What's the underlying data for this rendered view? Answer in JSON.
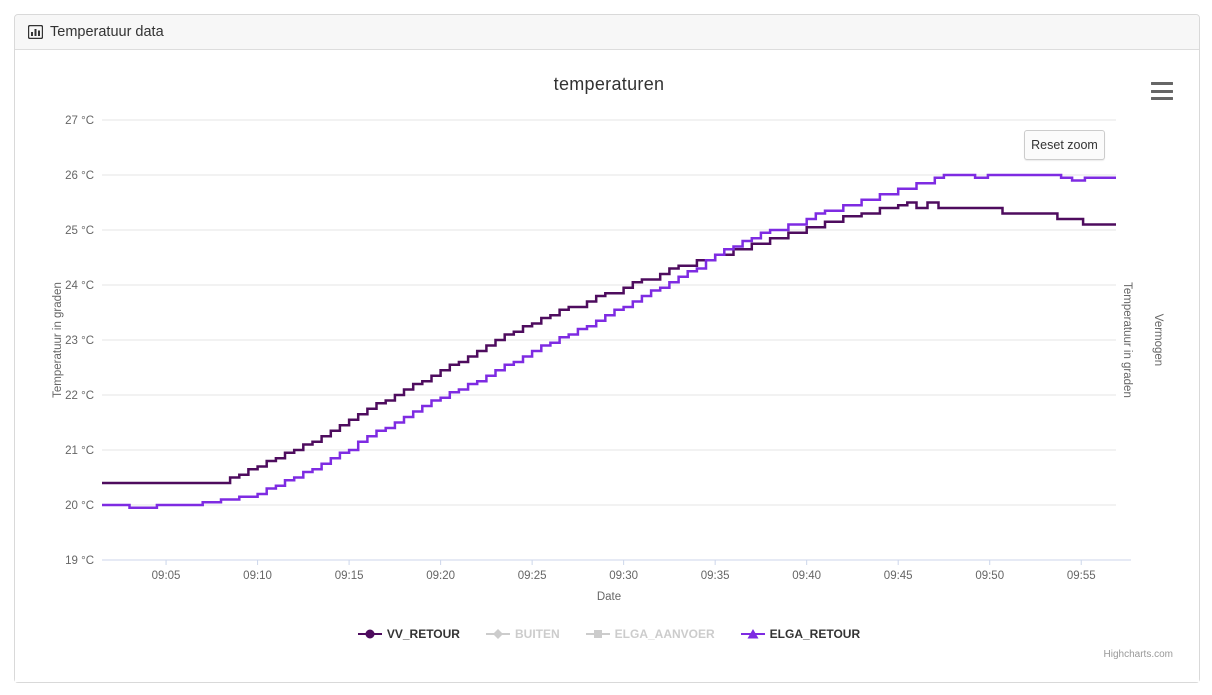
{
  "card": {
    "header_title": "Temperatuur data",
    "header_icon": "bar-chart-icon"
  },
  "toolbar": {
    "reset_zoom_label": "Reset zoom",
    "menu_icon": "hamburger-menu-icon"
  },
  "credits": {
    "label": "Highcharts.com"
  },
  "chart_data": {
    "type": "line",
    "title": "temperaturen",
    "xlabel": "Date",
    "ylabel_left": "Temperatuur in graden",
    "ylabel_right": "Temperatuur in graden",
    "ylabel_right2": "Vermogen",
    "x_unit": "minutes after 09:00",
    "xlim": [
      1.5,
      56.9
    ],
    "ylim": [
      19,
      27
    ],
    "grid": "horizontal-only",
    "legend_position": "bottom",
    "zoomed": true,
    "colors": {
      "grid": "#e6e6e6",
      "axis_line": "#ccd6eb",
      "tick_label": "#666666"
    },
    "y_ticks": [
      {
        "v": 19,
        "label": "19 °C"
      },
      {
        "v": 20,
        "label": "20 °C"
      },
      {
        "v": 21,
        "label": "21 °C"
      },
      {
        "v": 22,
        "label": "22 °C"
      },
      {
        "v": 23,
        "label": "23 °C"
      },
      {
        "v": 24,
        "label": "24 °C"
      },
      {
        "v": 25,
        "label": "25 °C"
      },
      {
        "v": 26,
        "label": "26 °C"
      },
      {
        "v": 27,
        "label": "27 °C"
      }
    ],
    "x_ticks": [
      {
        "v": 5,
        "label": "09:05"
      },
      {
        "v": 10,
        "label": "09:10"
      },
      {
        "v": 15,
        "label": "09:15"
      },
      {
        "v": 20,
        "label": "09:20"
      },
      {
        "v": 25,
        "label": "09:25"
      },
      {
        "v": 30,
        "label": "09:30"
      },
      {
        "v": 35,
        "label": "09:35"
      },
      {
        "v": 40,
        "label": "09:40"
      },
      {
        "v": 45,
        "label": "09:45"
      },
      {
        "v": 50,
        "label": "09:50"
      },
      {
        "v": 55,
        "label": "09:55"
      }
    ],
    "series": [
      {
        "name": "VV_RETOUR",
        "color": "#4e0c5e",
        "marker": "circle",
        "enabled": true,
        "step": true,
        "points": [
          [
            1.5,
            20.4
          ],
          [
            8,
            20.4
          ],
          [
            8.5,
            20.5
          ],
          [
            9,
            20.55
          ],
          [
            10,
            20.7
          ],
          [
            11,
            20.85
          ],
          [
            12,
            21.0
          ],
          [
            13,
            21.15
          ],
          [
            14,
            21.35
          ],
          [
            15,
            21.55
          ],
          [
            16,
            21.75
          ],
          [
            17,
            21.9
          ],
          [
            18,
            22.1
          ],
          [
            19,
            22.25
          ],
          [
            20,
            22.45
          ],
          [
            21,
            22.6
          ],
          [
            22,
            22.8
          ],
          [
            23,
            23.0
          ],
          [
            24,
            23.15
          ],
          [
            25,
            23.3
          ],
          [
            26,
            23.45
          ],
          [
            27,
            23.6
          ],
          [
            28,
            23.7
          ],
          [
            29,
            23.85
          ],
          [
            30,
            23.95
          ],
          [
            31,
            24.1
          ],
          [
            32,
            24.2
          ],
          [
            33,
            24.35
          ],
          [
            34,
            24.45
          ],
          [
            35,
            24.55
          ],
          [
            36,
            24.65
          ],
          [
            37,
            24.75
          ],
          [
            38,
            24.85
          ],
          [
            39,
            24.95
          ],
          [
            40,
            25.05
          ],
          [
            41,
            25.15
          ],
          [
            42,
            25.25
          ],
          [
            43,
            25.3
          ],
          [
            44,
            25.4
          ],
          [
            45,
            25.45
          ],
          [
            45.5,
            25.5
          ],
          [
            46,
            25.4
          ],
          [
            46.6,
            25.5
          ],
          [
            47.2,
            25.4
          ],
          [
            50.7,
            25.3
          ],
          [
            53.7,
            25.2
          ],
          [
            55.1,
            25.1
          ],
          [
            56.9,
            25.1
          ]
        ]
      },
      {
        "name": "BUITEN",
        "color": "#cccccc",
        "marker": "diamond",
        "enabled": false,
        "points": []
      },
      {
        "name": "ELGA_AANVOER",
        "color": "#cccccc",
        "marker": "square",
        "enabled": false,
        "points": []
      },
      {
        "name": "ELGA_RETOUR",
        "color": "#7e2be2",
        "marker": "triangle",
        "enabled": true,
        "step": true,
        "points": [
          [
            1.5,
            20.0
          ],
          [
            3,
            19.95
          ],
          [
            4.5,
            20.0
          ],
          [
            7,
            20.05
          ],
          [
            8,
            20.1
          ],
          [
            9,
            20.15
          ],
          [
            10,
            20.2
          ],
          [
            11,
            20.35
          ],
          [
            12,
            20.5
          ],
          [
            13,
            20.65
          ],
          [
            14,
            20.85
          ],
          [
            15,
            21.0
          ],
          [
            16,
            21.25
          ],
          [
            17,
            21.4
          ],
          [
            18,
            21.6
          ],
          [
            19,
            21.8
          ],
          [
            20,
            21.95
          ],
          [
            21,
            22.1
          ],
          [
            22,
            22.25
          ],
          [
            23,
            22.45
          ],
          [
            24,
            22.6
          ],
          [
            25,
            22.8
          ],
          [
            26,
            22.95
          ],
          [
            27,
            23.1
          ],
          [
            28,
            23.25
          ],
          [
            29,
            23.45
          ],
          [
            30,
            23.6
          ],
          [
            31,
            23.8
          ],
          [
            32,
            23.95
          ],
          [
            33,
            24.15
          ],
          [
            34,
            24.3
          ],
          [
            35,
            24.55
          ],
          [
            36,
            24.7
          ],
          [
            37,
            24.85
          ],
          [
            38,
            25.0
          ],
          [
            39,
            25.1
          ],
          [
            40,
            25.2
          ],
          [
            41,
            25.35
          ],
          [
            42,
            25.45
          ],
          [
            43,
            25.55
          ],
          [
            44,
            25.65
          ],
          [
            45,
            25.75
          ],
          [
            46,
            25.85
          ],
          [
            47,
            25.95
          ],
          [
            47.5,
            26.0
          ],
          [
            49.2,
            25.95
          ],
          [
            49.9,
            26.0
          ],
          [
            53.9,
            25.95
          ],
          [
            54.5,
            25.9
          ],
          [
            55.2,
            25.95
          ],
          [
            56.9,
            25.95
          ]
        ]
      }
    ]
  }
}
